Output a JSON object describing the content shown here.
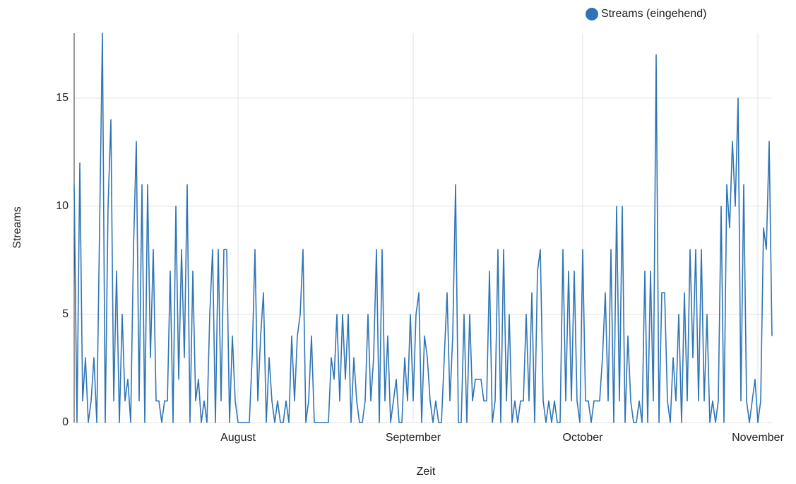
{
  "chart_data": {
    "type": "line",
    "x_label": "Zeit",
    "y_label": "Streams",
    "categories": [
      null,
      null,
      null,
      null,
      null,
      null,
      null,
      null,
      null,
      null,
      null,
      null,
      null,
      null,
      null,
      null,
      null,
      null,
      null,
      null,
      null,
      null,
      null,
      null,
      null,
      null,
      null,
      null,
      null,
      null,
      null,
      null,
      null,
      null,
      null,
      null,
      null,
      null,
      null,
      null,
      null,
      null,
      null,
      null,
      null,
      null,
      null,
      null,
      null,
      null,
      null,
      null,
      null,
      null,
      null,
      null,
      null,
      null,
      "August",
      null,
      null,
      null,
      null,
      null,
      null,
      null,
      null,
      null,
      null,
      null,
      null,
      null,
      null,
      null,
      null,
      null,
      null,
      null,
      null,
      null,
      null,
      null,
      null,
      null,
      null,
      null,
      null,
      null,
      null,
      null,
      null,
      null,
      null,
      null,
      null,
      null,
      null,
      null,
      null,
      null,
      null,
      null,
      null,
      null,
      null,
      null,
      null,
      null,
      null,
      null,
      null,
      null,
      null,
      null,
      null,
      null,
      null,
      null,
      null,
      null,
      "September",
      null,
      null,
      null,
      null,
      null,
      null,
      null,
      null,
      null,
      null,
      null,
      null,
      null,
      null,
      null,
      null,
      null,
      null,
      null,
      null,
      null,
      null,
      null,
      null,
      null,
      null,
      null,
      null,
      null,
      null,
      null,
      null,
      null,
      null,
      null,
      null,
      null,
      null,
      null,
      null,
      null,
      null,
      null,
      null,
      null,
      null,
      null,
      null,
      null,
      null,
      null,
      null,
      null,
      null,
      null,
      null,
      null,
      null,
      null,
      "October",
      null,
      null,
      null,
      null,
      null,
      null,
      null,
      null,
      null,
      null,
      null,
      null,
      null,
      null,
      null,
      null,
      null,
      null,
      null,
      null,
      null,
      null,
      null,
      null,
      null,
      null,
      null,
      null,
      null,
      null,
      null,
      null,
      null,
      null,
      null,
      null,
      null,
      null,
      null,
      null,
      null,
      null,
      null,
      null,
      null,
      null,
      null,
      null,
      null,
      null,
      null,
      null,
      null,
      null,
      null,
      null,
      null,
      null,
      null,
      null,
      null,
      "November",
      null,
      null,
      null,
      null,
      null
    ],
    "series": [
      {
        "name": "Streams (eingehend)",
        "color": "#2f75b5",
        "values": [
          11,
          0,
          12,
          1,
          3,
          0,
          1,
          3,
          0,
          9,
          18,
          0,
          10,
          14,
          1,
          7,
          0,
          5,
          1,
          2,
          0,
          8,
          13,
          1,
          11,
          0,
          11,
          3,
          8,
          1,
          1,
          0,
          1,
          1,
          7,
          0,
          10,
          2,
          8,
          3,
          11,
          0,
          7,
          1,
          2,
          0,
          1,
          0,
          5,
          8,
          0,
          8,
          1,
          8,
          8,
          0,
          4,
          1,
          0,
          0,
          0,
          0,
          0,
          3,
          8,
          1,
          4,
          6,
          0,
          3,
          1,
          0,
          1,
          0,
          0,
          1,
          0,
          4,
          1,
          4,
          5,
          8,
          0,
          1,
          4,
          0,
          0,
          0,
          0,
          0,
          0,
          3,
          2,
          5,
          1,
          5,
          2,
          5,
          0,
          3,
          1,
          0,
          0,
          1,
          5,
          1,
          3,
          8,
          0,
          8,
          1,
          4,
          0,
          1,
          2,
          0,
          0,
          3,
          1,
          5,
          1,
          5,
          6,
          0,
          4,
          3,
          1,
          0,
          1,
          0,
          0,
          3,
          6,
          1,
          4,
          11,
          0,
          0,
          5,
          0,
          5,
          1,
          2,
          2,
          2,
          1,
          1,
          7,
          0,
          1,
          8,
          0,
          8,
          1,
          5,
          0,
          1,
          0,
          1,
          1,
          5,
          1,
          6,
          0,
          7,
          8,
          1,
          0,
          1,
          0,
          1,
          0,
          0,
          8,
          1,
          7,
          1,
          7,
          1,
          0,
          8,
          1,
          1,
          0,
          1,
          1,
          1,
          3,
          6,
          1,
          8,
          0,
          10,
          1,
          10,
          0,
          4,
          1,
          0,
          0,
          1,
          0,
          7,
          0,
          7,
          1,
          17,
          0,
          6,
          6,
          1,
          0,
          3,
          1,
          5,
          0,
          6,
          1,
          8,
          3,
          8,
          1,
          8,
          1,
          5,
          0,
          1,
          0,
          1,
          10,
          0,
          11,
          9,
          13,
          10,
          15,
          1,
          11,
          1,
          0,
          1,
          2,
          0,
          1,
          9,
          8,
          13,
          4
        ]
      }
    ],
    "ylim": [
      0,
      18
    ],
    "yticks": [
      0,
      5,
      10,
      15
    ],
    "grid": true,
    "legend": "top-right"
  }
}
